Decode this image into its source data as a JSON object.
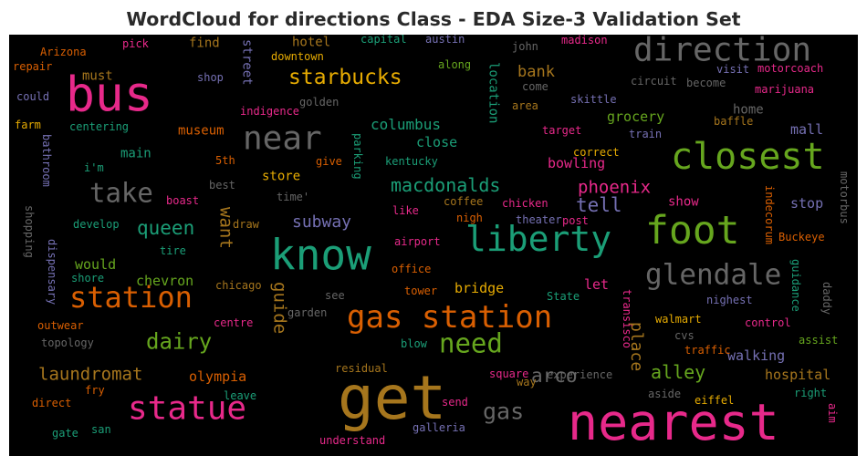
{
  "title": "WordCloud for directions Class - EDA Size-3 Validation Set",
  "chart_data": {
    "type": "wordcloud",
    "title": "WordCloud for directions Class - EDA Size-3 Validation Set",
    "background": "#000000",
    "colormap": "Dark2",
    "words": [
      {
        "text": "get",
        "weight": 70,
        "color": "#a6761d"
      },
      {
        "text": "nearest",
        "weight": 62,
        "color": "#e7298a"
      },
      {
        "text": "bus",
        "weight": 60,
        "color": "#e7298a"
      },
      {
        "text": "know",
        "weight": 52,
        "color": "#1b9e77"
      },
      {
        "text": "foot",
        "weight": 48,
        "color": "#66a61e"
      },
      {
        "text": "closest",
        "weight": 44,
        "color": "#66a61e"
      },
      {
        "text": "liberty",
        "weight": 42,
        "color": "#1b9e77"
      },
      {
        "text": "direction",
        "weight": 40,
        "color": "#666666"
      },
      {
        "text": "near",
        "weight": 40,
        "color": "#666666"
      },
      {
        "text": "statue",
        "weight": 40,
        "color": "#e7298a"
      },
      {
        "text": "gas station",
        "weight": 38,
        "color": "#d95f02"
      },
      {
        "text": "station",
        "weight": 36,
        "color": "#d95f02"
      },
      {
        "text": "glendale",
        "weight": 34,
        "color": "#666666"
      },
      {
        "text": "need",
        "weight": 32,
        "color": "#66a61e"
      },
      {
        "text": "take",
        "weight": 32,
        "color": "#666666"
      },
      {
        "text": "gas",
        "weight": 28,
        "color": "#666666"
      },
      {
        "text": "starbucks",
        "weight": 26,
        "color": "#e6ab02"
      },
      {
        "text": "dairy",
        "weight": 26,
        "color": "#66a61e"
      },
      {
        "text": "macdonalds",
        "weight": 22,
        "color": "#1b9e77"
      },
      {
        "text": "queen",
        "weight": 22,
        "color": "#1b9e77"
      },
      {
        "text": "tell",
        "weight": 22,
        "color": "#7570b3"
      },
      {
        "text": "phoenix",
        "weight": 22,
        "color": "#e7298a"
      },
      {
        "text": "arco",
        "weight": 22,
        "color": "#666666"
      },
      {
        "text": "alley",
        "weight": 22,
        "color": "#66a61e"
      },
      {
        "text": "want",
        "weight": 20,
        "color": "#a6761d"
      },
      {
        "text": "guide",
        "weight": 20,
        "color": "#a6761d"
      },
      {
        "text": "laundromat",
        "weight": 20,
        "color": "#a6761d"
      },
      {
        "text": "subway",
        "weight": 20,
        "color": "#7570b3"
      },
      {
        "text": "bank",
        "weight": 18,
        "color": "#a6761d"
      },
      {
        "text": "columbus",
        "weight": 18,
        "color": "#1b9e77"
      },
      {
        "text": "location",
        "weight": 16,
        "color": "#1b9e77"
      },
      {
        "text": "place",
        "weight": 18,
        "color": "#a6761d"
      },
      {
        "text": "bridge",
        "weight": 18,
        "color": "#e6ab02"
      },
      {
        "text": "walking",
        "weight": 18,
        "color": "#7570b3"
      },
      {
        "text": "hospital",
        "weight": 18,
        "color": "#a6761d"
      },
      {
        "text": "olympia",
        "weight": 18,
        "color": "#d95f02"
      },
      {
        "text": "chevron",
        "weight": 18,
        "color": "#66a61e"
      },
      {
        "text": "would",
        "weight": 17,
        "color": "#66a61e"
      },
      {
        "text": "grocery",
        "weight": 17,
        "color": "#66a61e"
      },
      {
        "text": "close",
        "weight": 17,
        "color": "#1b9e77"
      },
      {
        "text": "bowling",
        "weight": 17,
        "color": "#e7298a"
      },
      {
        "text": "stop",
        "weight": 17,
        "color": "#7570b3"
      },
      {
        "text": "mall",
        "weight": 17,
        "color": "#7570b3"
      },
      {
        "text": "show",
        "weight": 16,
        "color": "#e7298a"
      },
      {
        "text": "let",
        "weight": 17,
        "color": "#e7298a"
      },
      {
        "text": "hotel",
        "weight": 16,
        "color": "#a6761d"
      },
      {
        "text": "find",
        "weight": 16,
        "color": "#a6761d"
      },
      {
        "text": "must",
        "weight": 16,
        "color": "#a6761d"
      },
      {
        "text": "main",
        "weight": 16,
        "color": "#1b9e77"
      },
      {
        "text": "museum",
        "weight": 16,
        "color": "#d95f02"
      },
      {
        "text": "store",
        "weight": 16,
        "color": "#e6ab02"
      },
      {
        "text": "home",
        "weight": 15,
        "color": "#666666"
      },
      {
        "text": "street",
        "weight": 14,
        "color": "#7570b3"
      },
      {
        "text": "coffee",
        "weight": 13,
        "color": "#a6761d"
      },
      {
        "text": "chicken",
        "weight": 13,
        "color": "#e7298a"
      },
      {
        "text": "Arizona",
        "weight": 13,
        "color": "#d95f02"
      },
      {
        "text": "pick",
        "weight": 13,
        "color": "#e7298a"
      },
      {
        "text": "downtown",
        "weight": 13,
        "color": "#e6ab02"
      },
      {
        "text": "capital",
        "weight": 13,
        "color": "#1b9e77"
      },
      {
        "text": "austin",
        "weight": 13,
        "color": "#7570b3"
      },
      {
        "text": "john",
        "weight": 13,
        "color": "#666666"
      },
      {
        "text": "madison",
        "weight": 13,
        "color": "#e7298a"
      },
      {
        "text": "repair",
        "weight": 13,
        "color": "#d95f02"
      },
      {
        "text": "shop",
        "weight": 13,
        "color": "#7570b3"
      },
      {
        "text": "along",
        "weight": 13,
        "color": "#66a61e"
      },
      {
        "text": "circuit",
        "weight": 13,
        "color": "#666666"
      },
      {
        "text": "become",
        "weight": 13,
        "color": "#666666"
      },
      {
        "text": "visit",
        "weight": 13,
        "color": "#7570b3"
      },
      {
        "text": "motorcoach",
        "weight": 13,
        "color": "#e7298a"
      },
      {
        "text": "could",
        "weight": 13,
        "color": "#7570b3"
      },
      {
        "text": "golden",
        "weight": 13,
        "color": "#666666"
      },
      {
        "text": "come",
        "weight": 13,
        "color": "#666666"
      },
      {
        "text": "marijuana",
        "weight": 13,
        "color": "#e7298a"
      },
      {
        "text": "indigence",
        "weight": 13,
        "color": "#e7298a"
      },
      {
        "text": "skittle",
        "weight": 13,
        "color": "#7570b3"
      },
      {
        "text": "area",
        "weight": 13,
        "color": "#a6761d"
      },
      {
        "text": "farm",
        "weight": 13,
        "color": "#e6ab02"
      },
      {
        "text": "centering",
        "weight": 13,
        "color": "#1b9e77"
      },
      {
        "text": "baffle",
        "weight": 13,
        "color": "#a6761d"
      },
      {
        "text": "target",
        "weight": 13,
        "color": "#e7298a"
      },
      {
        "text": "train",
        "weight": 13,
        "color": "#7570b3"
      },
      {
        "text": "i'm",
        "weight": 13,
        "color": "#1b9e77"
      },
      {
        "text": "correct",
        "weight": 13,
        "color": "#e6ab02"
      },
      {
        "text": "5th",
        "weight": 13,
        "color": "#d95f02"
      },
      {
        "text": "give",
        "weight": 13,
        "color": "#d95f02"
      },
      {
        "text": "kentucky",
        "weight": 13,
        "color": "#1b9e77"
      },
      {
        "text": "bathroom",
        "weight": 13,
        "color": "#7570b3"
      },
      {
        "text": "best",
        "weight": 13,
        "color": "#666666"
      },
      {
        "text": "boast",
        "weight": 13,
        "color": "#e7298a"
      },
      {
        "text": "time'",
        "weight": 12,
        "color": "#666666"
      },
      {
        "text": "parking",
        "weight": 12,
        "color": "#1b9e77"
      },
      {
        "text": "motorbus",
        "weight": 12,
        "color": "#666666"
      },
      {
        "text": "develop",
        "weight": 13,
        "color": "#1b9e77"
      },
      {
        "text": "draw",
        "weight": 13,
        "color": "#a6761d"
      },
      {
        "text": "nigh",
        "weight": 13,
        "color": "#d95f02"
      },
      {
        "text": "theater",
        "weight": 13,
        "color": "#7570b3"
      },
      {
        "text": "post",
        "weight": 13,
        "color": "#e7298a"
      },
      {
        "text": "like",
        "weight": 13,
        "color": "#e7298a"
      },
      {
        "text": "indecorum",
        "weight": 13,
        "color": "#d95f02"
      },
      {
        "text": "Buckeye",
        "weight": 13,
        "color": "#d95f02"
      },
      {
        "text": "shopping",
        "weight": 13,
        "color": "#666666"
      },
      {
        "text": "dispensary",
        "weight": 13,
        "color": "#7570b3"
      },
      {
        "text": "tire",
        "weight": 13,
        "color": "#1b9e77"
      },
      {
        "text": "airport",
        "weight": 13,
        "color": "#e7298a"
      },
      {
        "text": "shore",
        "weight": 13,
        "color": "#1b9e77"
      },
      {
        "text": "office",
        "weight": 13,
        "color": "#d95f02"
      },
      {
        "text": "transisco",
        "weight": 12,
        "color": "#e7298a"
      },
      {
        "text": "guidance",
        "weight": 12,
        "color": "#1b9e77"
      },
      {
        "text": "daddy",
        "weight": 12,
        "color": "#666666"
      },
      {
        "text": "chicago",
        "weight": 13,
        "color": "#a6761d"
      },
      {
        "text": "tower",
        "weight": 13,
        "color": "#d95f02"
      },
      {
        "text": "State",
        "weight": 13,
        "color": "#1b9e77"
      },
      {
        "text": "nighest",
        "weight": 13,
        "color": "#7570b3"
      },
      {
        "text": "outwear",
        "weight": 13,
        "color": "#d95f02"
      },
      {
        "text": "see",
        "weight": 13,
        "color": "#666666"
      },
      {
        "text": "centre",
        "weight": 13,
        "color": "#e7298a"
      },
      {
        "text": "garden",
        "weight": 13,
        "color": "#666666"
      },
      {
        "text": "walmart",
        "weight": 13,
        "color": "#e6ab02"
      },
      {
        "text": "control",
        "weight": 13,
        "color": "#e7298a"
      },
      {
        "text": "topology",
        "weight": 13,
        "color": "#666666"
      },
      {
        "text": "blow",
        "weight": 13,
        "color": "#1b9e77"
      },
      {
        "text": "cvs",
        "weight": 13,
        "color": "#666666"
      },
      {
        "text": "traffic",
        "weight": 13,
        "color": "#d95f02"
      },
      {
        "text": "assist",
        "weight": 13,
        "color": "#66a61e"
      },
      {
        "text": "residual",
        "weight": 13,
        "color": "#a6761d"
      },
      {
        "text": "experience",
        "weight": 13,
        "color": "#666666"
      },
      {
        "text": "square",
        "weight": 13,
        "color": "#e7298a"
      },
      {
        "text": "way",
        "weight": 13,
        "color": "#a6761d"
      },
      {
        "text": "fry",
        "weight": 13,
        "color": "#d95f02"
      },
      {
        "text": "direct",
        "weight": 13,
        "color": "#d95f02"
      },
      {
        "text": "leave",
        "weight": 13,
        "color": "#1b9e77"
      },
      {
        "text": "aside",
        "weight": 13,
        "color": "#666666"
      },
      {
        "text": "eiffel",
        "weight": 13,
        "color": "#e6ab02"
      },
      {
        "text": "right",
        "weight": 13,
        "color": "#1b9e77"
      },
      {
        "text": "send",
        "weight": 13,
        "color": "#e7298a"
      },
      {
        "text": "aim",
        "weight": 12,
        "color": "#e7298a"
      },
      {
        "text": "gate",
        "weight": 13,
        "color": "#1b9e77"
      },
      {
        "text": "san",
        "weight": 13,
        "color": "#1b9e77"
      },
      {
        "text": "galleria",
        "weight": 13,
        "color": "#7570b3"
      },
      {
        "text": "understand",
        "weight": 13,
        "color": "#e7298a"
      }
    ]
  }
}
